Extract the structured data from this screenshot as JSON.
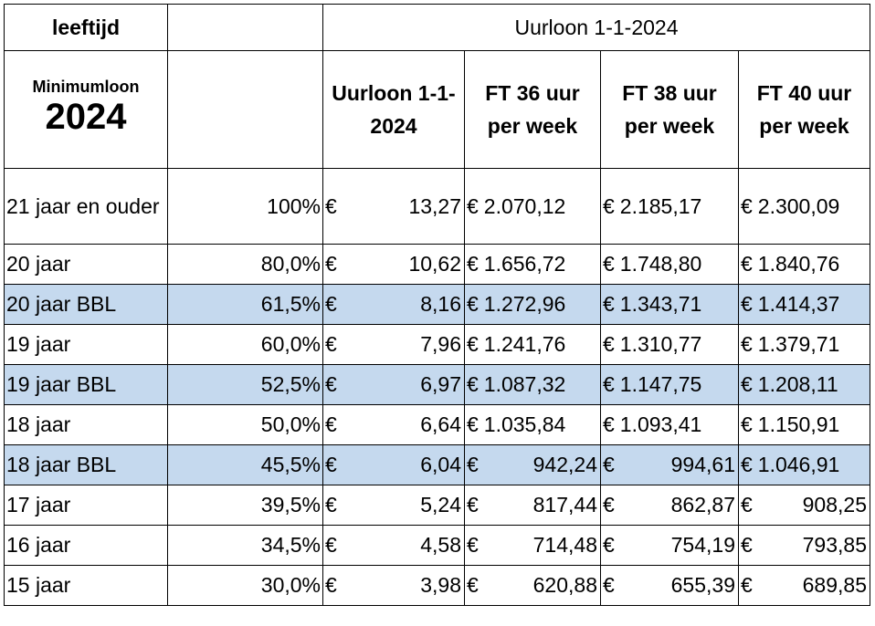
{
  "header": {
    "age_label": "leeftijd",
    "group_label": "Uurloon 1-1-2024",
    "min_label_small": "Minimumloon",
    "min_label_big": "2024",
    "col_uurloon": "Uurloon 1-1-2024",
    "col_ft36": "FT 36 uur per week",
    "col_ft38": "FT 38 uur per week",
    "col_ft40": "FT 40 uur per week"
  },
  "currency_symbol": "€",
  "rows": [
    {
      "age": "21 jaar en ouder",
      "pct": "100%",
      "uur": "13,27",
      "ft36": "2.070,12",
      "ft38": "2.185,17",
      "ft40": "2.300,09",
      "bbl": false
    },
    {
      "age": "20 jaar",
      "pct": "80,0%",
      "uur": "10,62",
      "ft36": "1.656,72",
      "ft38": "1.748,80",
      "ft40": "1.840,76",
      "bbl": false
    },
    {
      "age": "20 jaar BBL",
      "pct": "61,5%",
      "uur": "8,16",
      "ft36": "1.272,96",
      "ft38": "1.343,71",
      "ft40": "1.414,37",
      "bbl": true
    },
    {
      "age": "19 jaar",
      "pct": "60,0%",
      "uur": "7,96",
      "ft36": "1.241,76",
      "ft38": "1.310,77",
      "ft40": "1.379,71",
      "bbl": false
    },
    {
      "age": "19 jaar BBL",
      "pct": "52,5%",
      "uur": "6,97",
      "ft36": "1.087,32",
      "ft38": "1.147,75",
      "ft40": "1.208,11",
      "bbl": true
    },
    {
      "age": "18 jaar",
      "pct": "50,0%",
      "uur": "6,64",
      "ft36": "1.035,84",
      "ft38": "1.093,41",
      "ft40": "1.150,91",
      "bbl": false
    },
    {
      "age": "18 jaar BBL",
      "pct": "45,5%",
      "uur": "6,04",
      "ft36": "942,24",
      "ft38": "994,61",
      "ft40": "1.046,91",
      "bbl": true
    },
    {
      "age": "17 jaar",
      "pct": "39,5%",
      "uur": "5,24",
      "ft36": "817,44",
      "ft38": "862,87",
      "ft40": "908,25",
      "bbl": false
    },
    {
      "age": "16 jaar",
      "pct": "34,5%",
      "uur": "4,58",
      "ft36": "714,48",
      "ft38": "754,19",
      "ft40": "793,85",
      "bbl": false
    },
    {
      "age": "15 jaar",
      "pct": "30,0%",
      "uur": "3,98",
      "ft36": "620,88",
      "ft38": "655,39",
      "ft40": "689,85",
      "bbl": false
    }
  ]
}
